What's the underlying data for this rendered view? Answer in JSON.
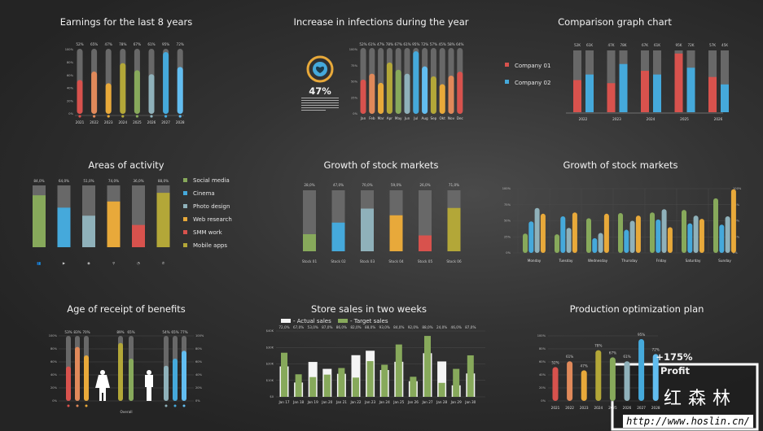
{
  "colors": {
    "red": "#d8524d",
    "orange": "#e0895a",
    "yellow": "#e8a93a",
    "olive": "#b3a738",
    "green": "#87a95b",
    "grayblue": "#8fb1ba",
    "blue": "#45a9db",
    "lightblue": "#62bdf0",
    "track": "#686868",
    "white": "#f4f4f4"
  },
  "chart_data": [
    {
      "id": "earnings",
      "type": "bar",
      "title": "Earnings for the last 8 years",
      "categories": [
        "2021",
        "2022",
        "2023",
        "2024",
        "2025",
        "2026",
        "2027",
        "2028"
      ],
      "values": [
        52,
        65,
        47,
        78,
        67,
        61,
        95,
        72
      ],
      "value_labels": [
        "52%",
        "65%",
        "47%",
        "78%",
        "67%",
        "61%",
        "95%",
        "72%"
      ],
      "ylim": [
        0,
        100
      ],
      "yticks": [
        "0%",
        "20%",
        "40%",
        "60%",
        "80%",
        "100%"
      ],
      "colors": [
        "red",
        "orange",
        "yellow",
        "olive",
        "green",
        "grayblue",
        "blue",
        "lightblue"
      ]
    },
    {
      "id": "infections",
      "type": "bar",
      "title": "Increase in infections during the year",
      "categories": [
        "Jan",
        "Feb",
        "Mar",
        "Apr",
        "May",
        "Jun",
        "Jul",
        "Aug",
        "Sep",
        "Okt",
        "Nov",
        "Dec"
      ],
      "values": [
        52,
        61,
        47,
        78,
        67,
        61,
        95,
        72,
        57,
        45,
        58,
        64
      ],
      "value_labels": [
        "52%",
        "61%",
        "47%",
        "78%",
        "67%",
        "61%",
        "95%",
        "72%",
        "57%",
        "45%",
        "58%",
        "64%"
      ],
      "ylim": [
        0,
        100
      ],
      "yticks": [
        "0%",
        "25%",
        "50%",
        "75%",
        "100%"
      ],
      "colors": [
        "red",
        "orange",
        "yellow",
        "olive",
        "green",
        "grayblue",
        "blue",
        "lightblue",
        "olive",
        "yellow",
        "orange",
        "red"
      ],
      "highlight": "47%",
      "icon": "heart-hand-icon"
    },
    {
      "id": "comparison",
      "type": "bar",
      "title": "Comparison graph chart",
      "categories": [
        "2022",
        "2023",
        "2024",
        "2025",
        "2026"
      ],
      "series": [
        {
          "name": "Company 01",
          "color": "red",
          "values": [
            52,
            47,
            67,
            95,
            57
          ],
          "value_labels": [
            "52K",
            "47K",
            "67K",
            "95K",
            "57K"
          ]
        },
        {
          "name": "Company 02",
          "color": "blue",
          "values": [
            61,
            78,
            61,
            72,
            45
          ],
          "value_labels": [
            "61K",
            "78K",
            "61K",
            "72K",
            "45K"
          ]
        }
      ],
      "ylim": [
        0,
        100
      ]
    },
    {
      "id": "activity",
      "type": "bar",
      "title": "Areas of activity",
      "categories": [
        "Social media",
        "Cinema",
        "Photo design",
        "Web research",
        "SMM work",
        "Mobile apps"
      ],
      "values": [
        84,
        64,
        51,
        74,
        36,
        88
      ],
      "value_labels": [
        "84,0%",
        "64,0%",
        "51,0%",
        "74,0%",
        "36,0%",
        "88,0%"
      ],
      "colors": [
        "green",
        "blue",
        "grayblue",
        "yellow",
        "red",
        "olive"
      ],
      "icons": [
        "users-icon",
        "video-camera-icon",
        "camera-icon",
        "location-pin-icon",
        "pie-chart-icon",
        "phone-icon"
      ],
      "ylim": [
        0,
        100
      ]
    },
    {
      "id": "stocks",
      "type": "bar",
      "title": "Growth of stock markets",
      "categories": [
        "Stock 01",
        "Stock 02",
        "Stock 03",
        "Stock 04",
        "Stock 05",
        "Stock 06"
      ],
      "values": [
        28,
        47,
        70,
        59,
        26,
        71
      ],
      "value_labels": [
        "28,0%",
        "47,0%",
        "70,0%",
        "59,0%",
        "26,0%",
        "71,0%"
      ],
      "colors": [
        "green",
        "blue",
        "grayblue",
        "yellow",
        "red",
        "olive"
      ],
      "ylim": [
        0,
        100
      ]
    },
    {
      "id": "weekly",
      "type": "bar",
      "title": "Growth of stock markets",
      "categories": [
        "Monday",
        "Tuesday",
        "Wednesday",
        "Thursday",
        "Friday",
        "Saturday",
        "Sunday"
      ],
      "series": [
        {
          "color": "green",
          "values": [
            30,
            29,
            54,
            62,
            63,
            67,
            85
          ]
        },
        {
          "color": "blue",
          "values": [
            49,
            57,
            23,
            36,
            52,
            46,
            44
          ]
        },
        {
          "color": "grayblue",
          "values": [
            70,
            39,
            31,
            50,
            68,
            58,
            57
          ]
        },
        {
          "color": "yellow",
          "values": [
            61,
            63,
            61,
            58,
            40,
            53,
            99
          ]
        }
      ],
      "ylim": [
        0,
        100
      ],
      "yticks": [
        "0%",
        "25%",
        "50%",
        "75%",
        "100%"
      ],
      "grid": true
    },
    {
      "id": "benefits",
      "type": "bar",
      "title": "Age of receipt of benefits",
      "groups": [
        {
          "values": [
            53,
            83,
            70
          ],
          "value_labels": [
            "53%",
            "83%",
            "70%"
          ],
          "colors": [
            "red",
            "orange",
            "yellow"
          ],
          "icon": "female-icon"
        },
        {
          "values": [
            89,
            65
          ],
          "value_labels": [
            "89%",
            "65%"
          ],
          "colors": [
            "olive",
            "green"
          ],
          "label": "Overall"
        },
        {
          "values": [
            54,
            65,
            77
          ],
          "value_labels": [
            "54%",
            "65%",
            "77%"
          ],
          "colors": [
            "grayblue",
            "blue",
            "lightblue"
          ],
          "icon": "male-icon"
        }
      ],
      "ylim": [
        0,
        100
      ],
      "yticks": [
        "0%",
        "20%",
        "40%",
        "60%",
        "80%",
        "100%"
      ],
      "grid": true
    },
    {
      "id": "store",
      "type": "bar",
      "title": "Store sales in two weeks",
      "legend": [
        "- Actual sales",
        "- Target sales"
      ],
      "categories": [
        "Jan 17",
        "Jan 18",
        "Jan 19",
        "Jan 20",
        "Jan 21",
        "Jan 22",
        "Jan 23",
        "Jan 24",
        "Jan 25",
        "Jan 26",
        "Jan 27",
        "Jan 28",
        "Jan 29",
        "Jan 30"
      ],
      "series": [
        {
          "name": "Actual sales",
          "color": "white",
          "values": [
            18.5,
            8.7,
            21.2,
            17,
            14,
            25.3,
            28,
            16.3,
            21.3,
            9.5,
            26.5,
            21.5,
            7,
            14.2
          ]
        },
        {
          "name": "Target sales",
          "color": "green",
          "values": [
            26.8,
            13.7,
            12,
            13.5,
            17.5,
            11.7,
            21.7,
            19.5,
            31.8,
            12.2,
            37,
            8.5,
            17,
            25.2
          ]
        }
      ],
      "value_labels": [
        "72,0%",
        "67,0%",
        "53,0%",
        "87,0%",
        "86,0%",
        "82,0%",
        "88,0%",
        "93,0%",
        "84,0%",
        "92,0%",
        "88,0%",
        "24,0%",
        "46,0%",
        "87,0%"
      ],
      "ylim": [
        0,
        40
      ],
      "yticks": [
        "$0",
        "$10K",
        "$20K",
        "$30K",
        "$40K"
      ],
      "grid": true
    },
    {
      "id": "production",
      "type": "bar",
      "title": "Production optimization plan",
      "categories": [
        "2021",
        "2022",
        "2023",
        "2024",
        "2025",
        "2026",
        "2027",
        "2028"
      ],
      "values": [
        52,
        61,
        47,
        78,
        67,
        61,
        95,
        72
      ],
      "value_labels": [
        "52%",
        "61%",
        "47%",
        "78%",
        "67%",
        "61%",
        "95%",
        "72%"
      ],
      "colors": [
        "red",
        "orange",
        "yellow",
        "olive",
        "green",
        "grayblue",
        "blue",
        "lightblue"
      ],
      "ylim": [
        0,
        100
      ],
      "yticks": [
        "0%",
        "20%",
        "40%",
        "60%",
        "80%",
        "100%"
      ],
      "grid": true,
      "headline": "+175%",
      "headline_sub": "Profit"
    }
  ],
  "watermark": {
    "logo_text": "红森林",
    "url": "http://www.hoslin.cn/"
  }
}
